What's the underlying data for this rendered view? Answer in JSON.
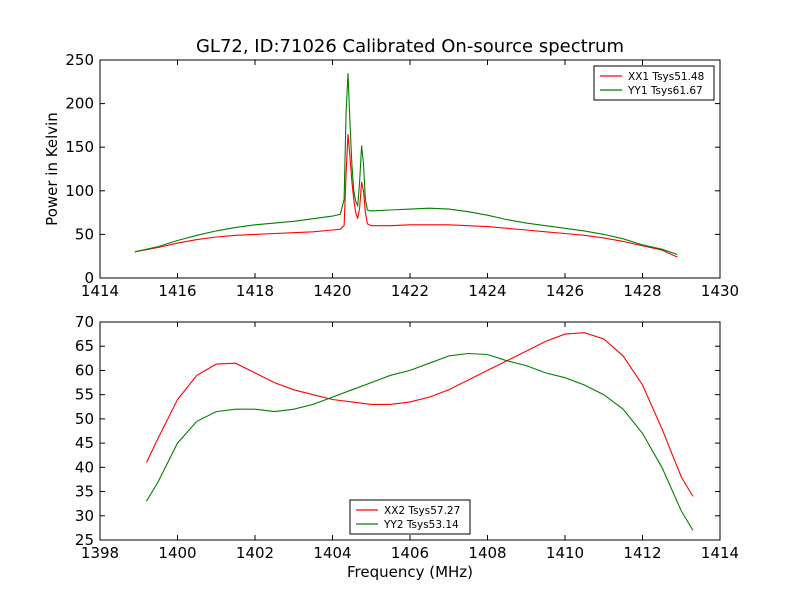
{
  "figure": {
    "title": "GL72, ID:71026 Calibrated On-source spectrum",
    "xlabel": "Frequency (MHz)"
  },
  "colors": {
    "xx": "#ff0000",
    "yy": "#008000"
  },
  "chart_data": [
    {
      "type": "line",
      "ylabel": "Power in Kelvin",
      "xlim": [
        1414,
        1430
      ],
      "ylim": [
        0,
        250
      ],
      "xticks": [
        1414,
        1416,
        1418,
        1420,
        1422,
        1424,
        1426,
        1428,
        1430
      ],
      "yticks": [
        0,
        50,
        100,
        150,
        200,
        250
      ],
      "legend": {
        "placement": "top-right"
      },
      "grid": false,
      "series": [
        {
          "name": "XX1 Tsys51.48",
          "color": "#ff0000",
          "points": [
            [
              1414.9,
              30
            ],
            [
              1415.5,
              35
            ],
            [
              1416,
              40
            ],
            [
              1416.5,
              44
            ],
            [
              1417,
              47
            ],
            [
              1417.5,
              49
            ],
            [
              1418,
              50
            ],
            [
              1418.5,
              51
            ],
            [
              1419,
              52
            ],
            [
              1419.5,
              53
            ],
            [
              1420,
              55
            ],
            [
              1420.2,
              56
            ],
            [
              1420.3,
              60
            ],
            [
              1420.35,
              120
            ],
            [
              1420.4,
              165
            ],
            [
              1420.45,
              140
            ],
            [
              1420.5,
              110
            ],
            [
              1420.55,
              90
            ],
            [
              1420.6,
              75
            ],
            [
              1420.65,
              68
            ],
            [
              1420.7,
              80
            ],
            [
              1420.75,
              110
            ],
            [
              1420.8,
              100
            ],
            [
              1420.85,
              75
            ],
            [
              1420.9,
              62
            ],
            [
              1421,
              60
            ],
            [
              1421.5,
              60
            ],
            [
              1422,
              61
            ],
            [
              1422.5,
              61
            ],
            [
              1423,
              61
            ],
            [
              1423.5,
              60
            ],
            [
              1424,
              59
            ],
            [
              1424.5,
              57
            ],
            [
              1425,
              55
            ],
            [
              1425.5,
              53
            ],
            [
              1426,
              51
            ],
            [
              1426.5,
              49
            ],
            [
              1427,
              46
            ],
            [
              1427.5,
              42
            ],
            [
              1428,
              37
            ],
            [
              1428.5,
              32
            ],
            [
              1428.9,
              24
            ]
          ]
        },
        {
          "name": "YY1 Tsys61.67",
          "color": "#008000",
          "points": [
            [
              1414.9,
              30
            ],
            [
              1415.5,
              36
            ],
            [
              1416,
              43
            ],
            [
              1416.5,
              49
            ],
            [
              1417,
              54
            ],
            [
              1417.5,
              58
            ],
            [
              1418,
              61
            ],
            [
              1418.5,
              63
            ],
            [
              1419,
              65
            ],
            [
              1419.5,
              68
            ],
            [
              1420,
              71
            ],
            [
              1420.2,
              73
            ],
            [
              1420.3,
              90
            ],
            [
              1420.35,
              190
            ],
            [
              1420.4,
              235
            ],
            [
              1420.45,
              180
            ],
            [
              1420.5,
              130
            ],
            [
              1420.55,
              100
            ],
            [
              1420.6,
              88
            ],
            [
              1420.65,
              83
            ],
            [
              1420.7,
              110
            ],
            [
              1420.75,
              152
            ],
            [
              1420.8,
              130
            ],
            [
              1420.85,
              90
            ],
            [
              1420.9,
              78
            ],
            [
              1421,
              77
            ],
            [
              1421.5,
              78
            ],
            [
              1422,
              79
            ],
            [
              1422.5,
              80
            ],
            [
              1423,
              79
            ],
            [
              1423.5,
              76
            ],
            [
              1424,
              72
            ],
            [
              1424.5,
              67
            ],
            [
              1425,
              63
            ],
            [
              1425.5,
              60
            ],
            [
              1426,
              57
            ],
            [
              1426.5,
              54
            ],
            [
              1427,
              50
            ],
            [
              1427.5,
              45
            ],
            [
              1428,
              38
            ],
            [
              1428.5,
              33
            ],
            [
              1428.9,
              27
            ]
          ]
        }
      ]
    },
    {
      "type": "line",
      "ylabel": "",
      "xlim": [
        1398,
        1414
      ],
      "ylim": [
        25,
        70
      ],
      "xticks": [
        1398,
        1400,
        1402,
        1404,
        1406,
        1408,
        1410,
        1412,
        1414
      ],
      "yticks": [
        25,
        30,
        35,
        40,
        45,
        50,
        55,
        60,
        65,
        70
      ],
      "legend": {
        "placement": "lower-center"
      },
      "grid": false,
      "series": [
        {
          "name": "XX2 Tsys57.27",
          "color": "#ff0000",
          "points": [
            [
              1399.2,
              41
            ],
            [
              1399.5,
              46
            ],
            [
              1400,
              54
            ],
            [
              1400.5,
              59
            ],
            [
              1401,
              61.3
            ],
            [
              1401.5,
              61.5
            ],
            [
              1402,
              59.5
            ],
            [
              1402.5,
              57.5
            ],
            [
              1403,
              56
            ],
            [
              1403.5,
              55
            ],
            [
              1404,
              54
            ],
            [
              1404.5,
              53.5
            ],
            [
              1405,
              53
            ],
            [
              1405.5,
              53
            ],
            [
              1406,
              53.5
            ],
            [
              1406.5,
              54.5
            ],
            [
              1407,
              56
            ],
            [
              1407.5,
              58
            ],
            [
              1408,
              60
            ],
            [
              1408.5,
              62
            ],
            [
              1409,
              64
            ],
            [
              1409.5,
              66
            ],
            [
              1410,
              67.5
            ],
            [
              1410.5,
              67.8
            ],
            [
              1411,
              66.5
            ],
            [
              1411.5,
              63
            ],
            [
              1412,
              57
            ],
            [
              1412.5,
              48
            ],
            [
              1413,
              38
            ],
            [
              1413.3,
              34
            ]
          ]
        },
        {
          "name": "YY2 Tsys53.14",
          "color": "#008000",
          "points": [
            [
              1399.2,
              33
            ],
            [
              1399.5,
              37
            ],
            [
              1400,
              45
            ],
            [
              1400.5,
              49.5
            ],
            [
              1401,
              51.5
            ],
            [
              1401.5,
              52
            ],
            [
              1402,
              52
            ],
            [
              1402.5,
              51.5
            ],
            [
              1403,
              52
            ],
            [
              1403.5,
              53
            ],
            [
              1404,
              54.5
            ],
            [
              1404.5,
              56
            ],
            [
              1405,
              57.5
            ],
            [
              1405.5,
              59
            ],
            [
              1406,
              60
            ],
            [
              1406.5,
              61.5
            ],
            [
              1407,
              63
            ],
            [
              1407.5,
              63.5
            ],
            [
              1408,
              63.3
            ],
            [
              1408.5,
              62
            ],
            [
              1409,
              61
            ],
            [
              1409.5,
              59.5
            ],
            [
              1410,
              58.5
            ],
            [
              1410.5,
              57
            ],
            [
              1411,
              55
            ],
            [
              1411.5,
              52
            ],
            [
              1412,
              47
            ],
            [
              1412.5,
              40
            ],
            [
              1413,
              31
            ],
            [
              1413.3,
              27
            ]
          ]
        }
      ]
    }
  ]
}
